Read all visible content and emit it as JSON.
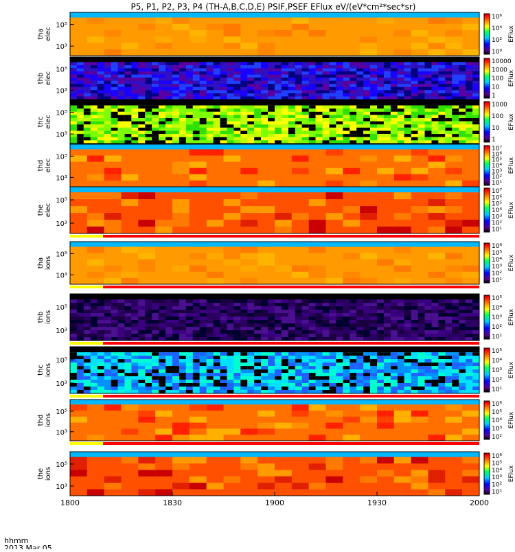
{
  "title": "P5, P1, P2, P3, P4  (TH-A,B,C,D,E)  PSIF,PSEF EFlux eV/(eV*cm²*sec*sr)",
  "colorbar_label": "EFlux",
  "footer": {
    "label_time": "hhmm",
    "label_date": "2013 Mar 05"
  },
  "status_colors": {
    "on": "#ff0000",
    "off": "#ffffff",
    "mode_a": "#ffff00",
    "mode_b": "#000000"
  },
  "chart_data": {
    "type": "heatmap",
    "xlim": [
      "1800",
      "2000"
    ],
    "x_ticks": [
      "1800",
      "1830",
      "1900",
      "1930",
      "2000"
    ],
    "panels": [
      {
        "name_line1": "tha",
        "name_line2": "elec",
        "yticks": [
          "10⁵",
          "10³"
        ],
        "cbar_ticks": [
          "10⁶",
          "10⁴",
          "10²",
          "10⁰"
        ],
        "pattern": "smooth-orange",
        "status_bar": false
      },
      {
        "name_line1": "thb",
        "name_line2": "elec",
        "yticks": [
          "10⁵",
          "10³"
        ],
        "cbar_ticks": [
          "10000",
          "1000",
          "100",
          "10",
          "1"
        ],
        "pattern": "noisy-blue",
        "status_bar": false
      },
      {
        "name_line1": "thc",
        "name_line2": "elec",
        "yticks": [
          "10⁵",
          "10³"
        ],
        "cbar_ticks": [
          "1000",
          "100",
          "10",
          "1"
        ],
        "pattern": "noisy-green",
        "status_bar": false
      },
      {
        "name_line1": "thd",
        "name_line2": "elec",
        "yticks": [
          "10⁵",
          "10³"
        ],
        "cbar_ticks": [
          "10⁷",
          "10⁶",
          "10⁵",
          "10⁴",
          "10³",
          "10²",
          "10¹"
        ],
        "pattern": "smooth-red",
        "status_bar": false
      },
      {
        "name_line1": "the",
        "name_line2": "elec",
        "yticks": [
          "10⁵",
          "10³"
        ],
        "cbar_ticks": [
          "10⁷",
          "10⁶",
          "10⁵",
          "10⁴",
          "10³",
          "10²",
          "10¹"
        ],
        "pattern": "smooth-dark",
        "status_bar": true
      },
      {
        "name_line1": "tha",
        "name_line2": "ions",
        "yticks": [
          "10⁵",
          "10³"
        ],
        "cbar_ticks": [
          "10⁶",
          "10⁵",
          "10⁴",
          "10³",
          "10²",
          "10¹"
        ],
        "pattern": "smooth-orange",
        "status_bar": true
      },
      {
        "name_line1": "thb",
        "name_line2": "ions",
        "yticks": [
          "10⁵",
          "10³"
        ],
        "cbar_ticks": [
          "10⁵",
          "10⁴",
          "10³",
          "10²",
          "10¹"
        ],
        "pattern": "noisy-purple",
        "status_bar": true
      },
      {
        "name_line1": "thc",
        "name_line2": "ions",
        "yticks": [
          "10⁵",
          "10³"
        ],
        "cbar_ticks": [
          "10⁵",
          "10⁴",
          "10³",
          "10²",
          "10¹"
        ],
        "pattern": "noisy-cyan",
        "status_bar": true
      },
      {
        "name_line1": "thd",
        "name_line2": "ions",
        "yticks": [
          "10⁵",
          "10³"
        ],
        "cbar_ticks": [
          "10⁶",
          "10⁵",
          "10⁴",
          "10³",
          "10²"
        ],
        "pattern": "smooth-red",
        "status_bar": true
      },
      {
        "name_line1": "the",
        "name_line2": "ions",
        "yticks": [
          "10⁵",
          "10³"
        ],
        "cbar_ticks": [
          "10⁶",
          "10⁵",
          "10⁴",
          "10³",
          "10²",
          "10¹"
        ],
        "pattern": "smooth-dark",
        "status_bar": false
      }
    ]
  }
}
